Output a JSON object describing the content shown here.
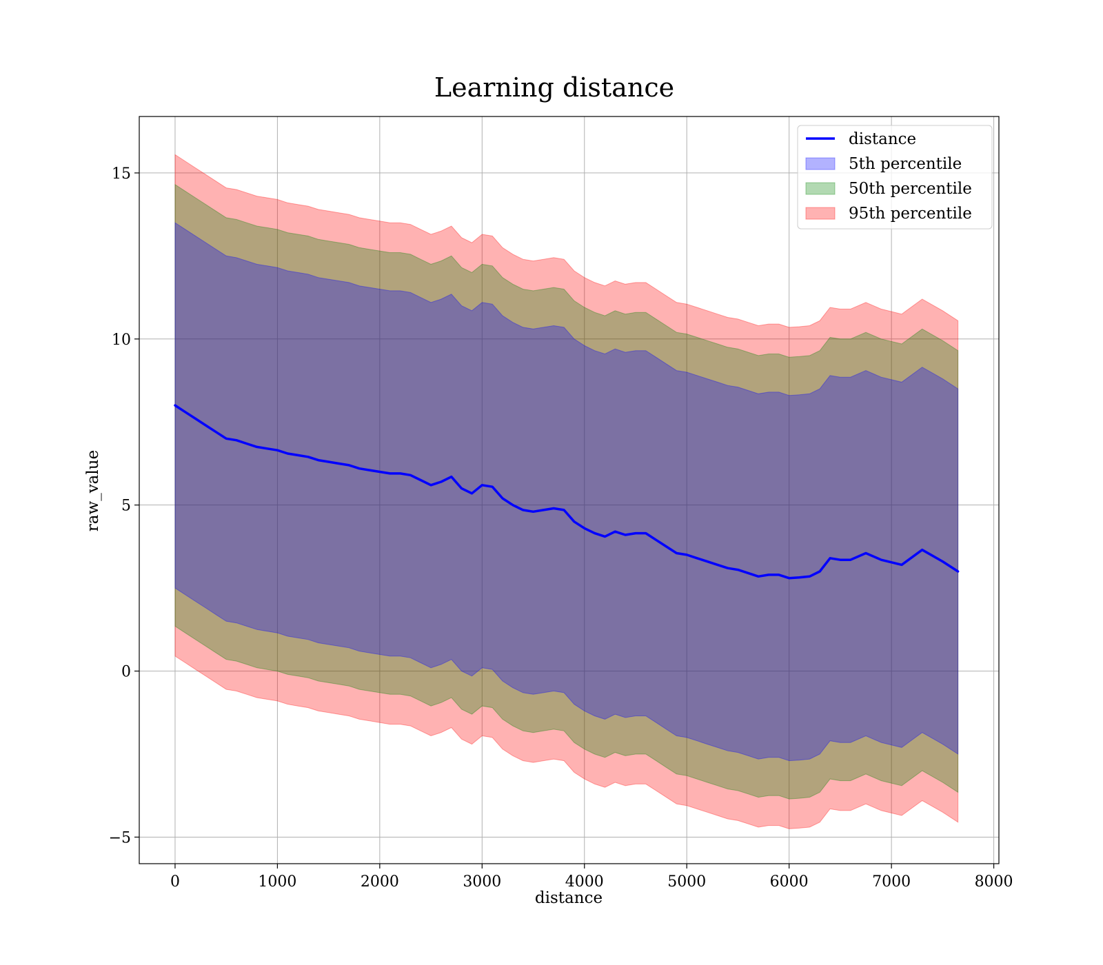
{
  "chart_data": {
    "type": "line",
    "title": "Learning distance",
    "xlabel": "distance",
    "ylabel": "raw_value",
    "xlim": [
      -350,
      8050
    ],
    "ylim": [
      -5.8,
      16.7
    ],
    "xticks": [
      0,
      1000,
      2000,
      3000,
      4000,
      5000,
      6000,
      7000,
      8000
    ],
    "xtick_labels": [
      "0",
      "1000",
      "2000",
      "3000",
      "4000",
      "5000",
      "6000",
      "7000",
      "8000"
    ],
    "yticks": [
      -5,
      0,
      5,
      10,
      15
    ],
    "ytick_labels": [
      "−5",
      "0",
      "5",
      "10",
      "15"
    ],
    "grid": true,
    "legend_position": "top-right",
    "colors": {
      "line": "#0000ff",
      "band_5th": "#0000ff",
      "band_50th": "#008000",
      "band_95th": "#ff0000"
    },
    "series": [
      {
        "name": "distance",
        "kind": "line",
        "x": [
          0,
          100,
          200,
          300,
          400,
          500,
          600,
          700,
          800,
          900,
          1000,
          1100,
          1200,
          1300,
          1400,
          1500,
          1600,
          1700,
          1800,
          1900,
          2000,
          2100,
          2200,
          2300,
          2400,
          2500,
          2600,
          2700,
          2800,
          2900,
          3000,
          3100,
          3200,
          3300,
          3400,
          3500,
          3600,
          3700,
          3800,
          3900,
          4000,
          4100,
          4200,
          4300,
          4400,
          4500,
          4600,
          4700,
          4800,
          4900,
          5000,
          5100,
          5200,
          5300,
          5400,
          5500,
          5600,
          5700,
          5800,
          5900,
          6000,
          6100,
          6200,
          6300,
          6400,
          6500,
          6600,
          6750,
          6900,
          7100,
          7300,
          7500,
          7650
        ],
        "y": [
          8.0,
          7.8,
          7.6,
          7.4,
          7.2,
          7.0,
          6.95,
          6.85,
          6.75,
          6.7,
          6.65,
          6.55,
          6.5,
          6.45,
          6.35,
          6.3,
          6.25,
          6.2,
          6.1,
          6.05,
          6.0,
          5.95,
          5.95,
          5.9,
          5.75,
          5.6,
          5.7,
          5.85,
          5.5,
          5.35,
          5.6,
          5.55,
          5.2,
          5.0,
          4.85,
          4.8,
          4.85,
          4.9,
          4.85,
          4.5,
          4.3,
          4.15,
          4.05,
          4.2,
          4.1,
          4.15,
          4.15,
          3.95,
          3.75,
          3.55,
          3.5,
          3.4,
          3.3,
          3.2,
          3.1,
          3.05,
          2.95,
          2.85,
          2.9,
          2.9,
          2.8,
          2.82,
          2.85,
          3.0,
          3.4,
          3.35,
          3.35,
          3.55,
          3.35,
          3.2,
          3.65,
          3.3,
          3.0
        ]
      },
      {
        "name": "5th percentile",
        "kind": "band",
        "half_width": 5.5
      },
      {
        "name": "50th percentile",
        "kind": "band",
        "half_width": 6.65
      },
      {
        "name": "95th percentile",
        "kind": "band",
        "half_width": 7.55
      }
    ]
  }
}
